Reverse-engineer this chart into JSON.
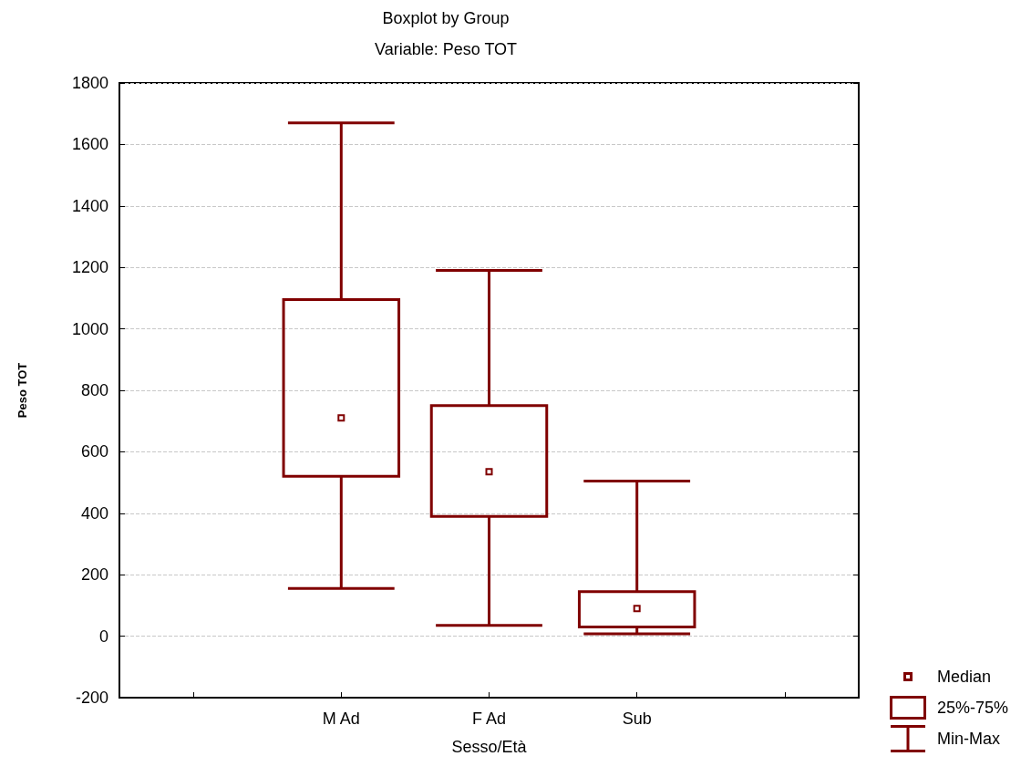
{
  "chart_data": {
    "type": "box",
    "title": "Boxplot by Group",
    "subtitle": "Variable: Peso TOT",
    "xlabel": "Sesso/Età",
    "ylabel": "Peso TOT",
    "categories": [
      null,
      "M Ad",
      "F Ad",
      "Sub",
      null
    ],
    "boxes": [
      null,
      {
        "low": 155,
        "q1": 520,
        "median": 710,
        "q3": 1095,
        "high": 1670
      },
      {
        "low": 35,
        "q1": 390,
        "median": 535,
        "q3": 750,
        "high": 1190
      },
      {
        "low": 8,
        "q1": 30,
        "median": 90,
        "q3": 145,
        "high": 505
      },
      null
    ],
    "color": "#800000",
    "ylim": [
      -200,
      1800
    ],
    "yticks": [
      -200,
      0,
      200,
      400,
      600,
      800,
      1000,
      1200,
      1400,
      1600,
      1800
    ],
    "grid": "y",
    "annotations": [
      "Median",
      "25%-75%",
      "Min-Max"
    ]
  }
}
